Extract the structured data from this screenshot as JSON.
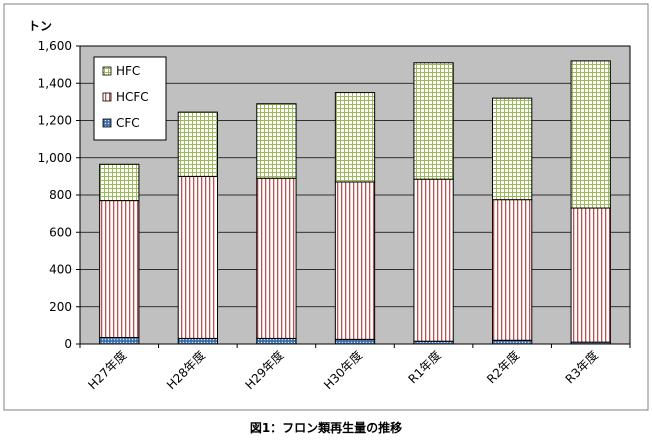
{
  "chart_data": {
    "type": "bar",
    "stacked": true,
    "categories": [
      "H27年度",
      "H28年度",
      "H29年度",
      "H30年度",
      "R1年度",
      "R2年度",
      "R3年度"
    ],
    "series": [
      {
        "name": "CFC",
        "values": [
          35,
          30,
          30,
          25,
          15,
          20,
          10
        ],
        "color": "#4f81bd",
        "pattern": "dots"
      },
      {
        "name": "HCFC",
        "values": [
          735,
          870,
          860,
          845,
          870,
          755,
          720
        ],
        "color": "#c0504d",
        "pattern": "vertical-lines"
      },
      {
        "name": "HFC",
        "values": [
          195,
          345,
          400,
          480,
          625,
          545,
          790
        ],
        "color": "#9bbb59",
        "pattern": "grid"
      }
    ],
    "legend_order": [
      "HFC",
      "HCFC",
      "CFC"
    ],
    "legend_position": "top-left",
    "ylim": [
      0,
      1600
    ],
    "yticks": [
      "0",
      "200",
      "400",
      "600",
      "800",
      "1,000",
      "1,200",
      "1,400",
      "1,600"
    ],
    "ylabel": "トン",
    "xlabel": "",
    "title": "図1：フロン類再生量の推移",
    "grid": true,
    "plot_background": "#c0c0c0"
  }
}
